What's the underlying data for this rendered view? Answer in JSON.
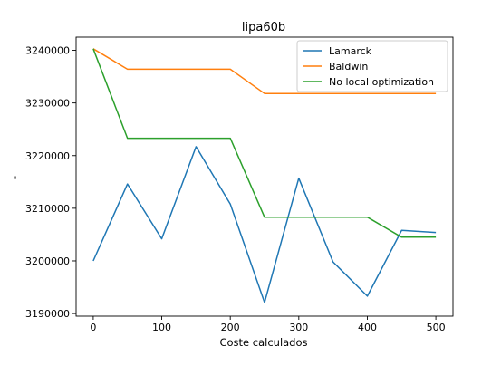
{
  "chart_data": {
    "type": "line",
    "title": "lipa60b",
    "xlabel": "Coste calculados",
    "ylabel": "-",
    "xlim": [
      -25,
      525
    ],
    "ylim": [
      3189500,
      3242500
    ],
    "xticks": [
      0,
      100,
      200,
      300,
      400,
      500
    ],
    "yticks": [
      3190000,
      3200000,
      3210000,
      3220000,
      3230000,
      3240000
    ],
    "grid": false,
    "legend_position": "top-right",
    "x": [
      0,
      50,
      100,
      150,
      200,
      250,
      300,
      350,
      400,
      450,
      500
    ],
    "series": [
      {
        "name": "Lamarck",
        "color": "#1f77b4",
        "values": [
          3200000,
          3214600,
          3204200,
          3221700,
          3210800,
          3192100,
          3215700,
          3199800,
          3193300,
          3205800,
          3205400
        ]
      },
      {
        "name": "Baldwin",
        "color": "#ff7f0e",
        "values": [
          3240300,
          3236400,
          3236400,
          3236400,
          3236400,
          3231800,
          3231800,
          3231800,
          3231800,
          3231800,
          3231800
        ]
      },
      {
        "name": "No local optimization",
        "color": "#2ca02c",
        "values": [
          3240300,
          3223300,
          3223300,
          3223300,
          3223300,
          3208300,
          3208300,
          3208300,
          3208300,
          3204500,
          3204500
        ]
      }
    ]
  }
}
